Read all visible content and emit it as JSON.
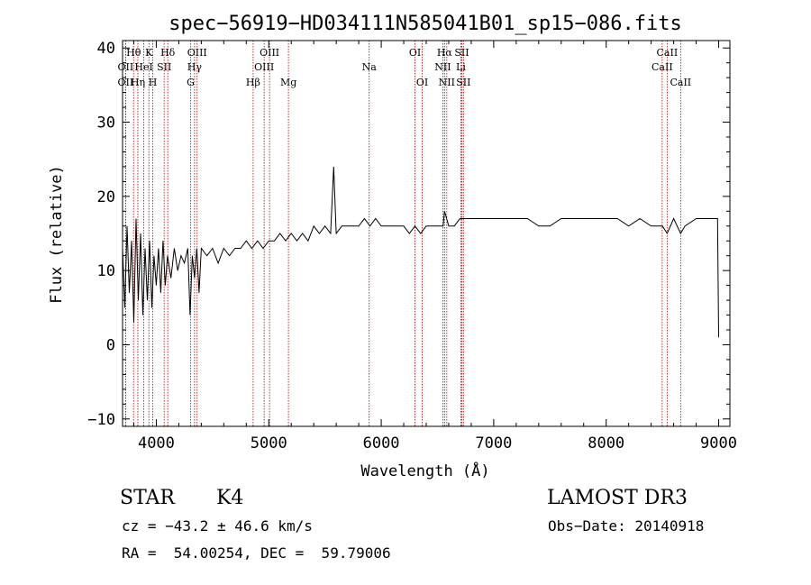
{
  "chart_data": {
    "type": "line",
    "title": "spec−56919−HD034111N585041B01_sp15−086.fits",
    "xlabel": "Wavelength (Å)",
    "ylabel": "Flux (relative)",
    "xlim": [
      3700,
      9100
    ],
    "ylim": [
      -11,
      41
    ],
    "xticks": [
      4000,
      5000,
      6000,
      7000,
      8000,
      9000
    ],
    "yticks": [
      -10,
      0,
      10,
      20,
      30,
      40
    ],
    "ytick_labels": [
      "−10",
      "0",
      "10",
      "20",
      "30",
      "40"
    ],
    "series": [
      {
        "name": "flux",
        "x": [
          3700,
          3720,
          3740,
          3760,
          3780,
          3800,
          3820,
          3840,
          3860,
          3880,
          3900,
          3920,
          3940,
          3960,
          3980,
          4000,
          4020,
          4040,
          4060,
          4080,
          4100,
          4130,
          4160,
          4190,
          4220,
          4250,
          4280,
          4300,
          4320,
          4340,
          4360,
          4380,
          4400,
          4450,
          4500,
          4550,
          4600,
          4650,
          4700,
          4750,
          4800,
          4850,
          4900,
          4950,
          5000,
          5050,
          5100,
          5150,
          5200,
          5250,
          5300,
          5350,
          5400,
          5450,
          5500,
          5550,
          5577,
          5600,
          5650,
          5700,
          5750,
          5800,
          5850,
          5900,
          5950,
          6000,
          6050,
          6100,
          6150,
          6200,
          6250,
          6300,
          6350,
          6400,
          6450,
          6500,
          6550,
          6563,
          6600,
          6650,
          6700,
          6750,
          6800,
          6900,
          7000,
          7100,
          7200,
          7300,
          7400,
          7500,
          7600,
          7700,
          7800,
          7900,
          8000,
          8100,
          8200,
          8300,
          8400,
          8500,
          8542,
          8600,
          8662,
          8700,
          8800,
          8900,
          8950,
          8990,
          9000
        ],
        "y": [
          13,
          5,
          16,
          7,
          14,
          3,
          17,
          6,
          15,
          4,
          13,
          6,
          14,
          5,
          12,
          8,
          13,
          7,
          14,
          8,
          12,
          9,
          13,
          10,
          12,
          11,
          13,
          4,
          12,
          9,
          13,
          7,
          13,
          12,
          13,
          11,
          13,
          12,
          13,
          13,
          14,
          13,
          14,
          13,
          14,
          14,
          15,
          14,
          15,
          14,
          15,
          14,
          16,
          15,
          16,
          15,
          24,
          15,
          16,
          16,
          16,
          16,
          17,
          16,
          17,
          16,
          16,
          16,
          16,
          16,
          15,
          16,
          15,
          16,
          16,
          16,
          16,
          18,
          16,
          16,
          17,
          17,
          17,
          17,
          17,
          17,
          17,
          17,
          16,
          16,
          17,
          17,
          17,
          17,
          17,
          17,
          16,
          17,
          16,
          16,
          15,
          17,
          15,
          16,
          17,
          17,
          17,
          17,
          1
        ]
      }
    ],
    "lines": [
      {
        "label": "OII",
        "wavelength": 3727,
        "row": 2
      },
      {
        "label": "OII",
        "wavelength": 3727,
        "row": 3
      },
      {
        "label": "Hθ",
        "wavelength": 3798,
        "row": 1
      },
      {
        "label": "Hη",
        "wavelength": 3836,
        "row": 3
      },
      {
        "label": "K",
        "wavelength": 3934,
        "row": 1
      },
      {
        "label": "HeI",
        "wavelength": 3889,
        "row": 2
      },
      {
        "label": "H",
        "wavelength": 3969,
        "row": 3
      },
      {
        "label": "SII",
        "wavelength": 4070,
        "row": 2
      },
      {
        "label": "Hδ",
        "wavelength": 4102,
        "row": 1
      },
      {
        "label": "OIII",
        "wavelength": 4363,
        "row": 1
      },
      {
        "label": "Hγ",
        "wavelength": 4340,
        "row": 2
      },
      {
        "label": "G",
        "wavelength": 4305,
        "row": 3
      },
      {
        "label": "Hβ",
        "wavelength": 4861,
        "row": 3
      },
      {
        "label": "OIII",
        "wavelength": 5007,
        "row": 1
      },
      {
        "label": "OIII",
        "wavelength": 4959,
        "row": 2
      },
      {
        "label": "Mg",
        "wavelength": 5175,
        "row": 3
      },
      {
        "label": "Na",
        "wavelength": 5893,
        "row": 2
      },
      {
        "label": "OI",
        "wavelength": 6300,
        "row": 1
      },
      {
        "label": "OI",
        "wavelength": 6364,
        "row": 3
      },
      {
        "label": "Hα",
        "wavelength": 6563,
        "row": 1
      },
      {
        "label": "NII",
        "wavelength": 6548,
        "row": 2
      },
      {
        "label": "NII",
        "wavelength": 6583,
        "row": 3
      },
      {
        "label": "SII",
        "wavelength": 6716,
        "row": 1
      },
      {
        "label": "Li",
        "wavelength": 6708,
        "row": 2
      },
      {
        "label": "SII",
        "wavelength": 6731,
        "row": 3
      },
      {
        "label": "CaII",
        "wavelength": 8542,
        "row": 1
      },
      {
        "label": "CaII",
        "wavelength": 8498,
        "row": 2
      },
      {
        "label": "CaII",
        "wavelength": 8662,
        "row": 3
      }
    ]
  },
  "info": {
    "object_class": "STAR",
    "subclass": "K4",
    "survey": "LAMOST DR3",
    "cz": "cz = −43.2 ± 46.6 km/s",
    "obs_date": "Obs−Date: 20140918",
    "coords": "RA =  54.00254, DEC =  59.79006"
  }
}
